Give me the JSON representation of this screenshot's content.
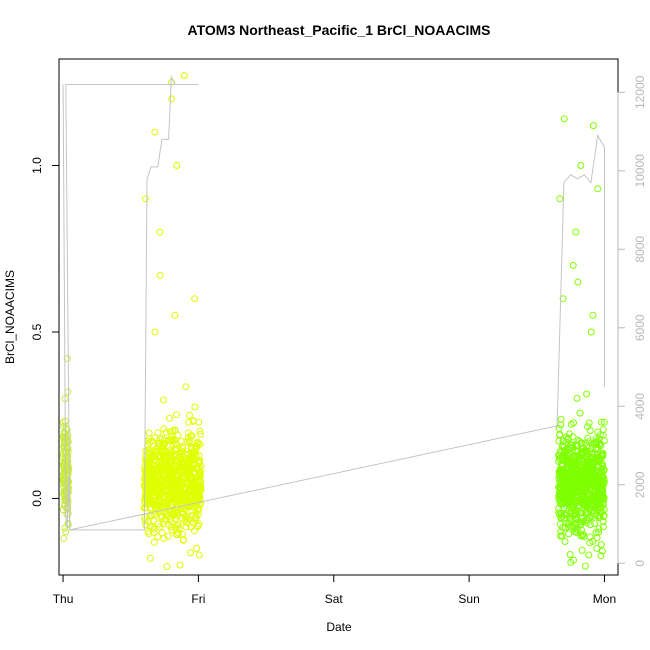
{
  "chart_data": {
    "type": "scatter",
    "title": "ATOM3 Northeast_Pacific_1 BrCl_NOAACIMS",
    "xlabel": "Date",
    "ylabel": "BrCl_NOAACIMS",
    "x_ticks": [
      "Thu",
      "Fri",
      "Sat",
      "Sun",
      "Mon"
    ],
    "xlim_days": [
      -0.03,
      4.1
    ],
    "ylim": [
      -0.23,
      1.32
    ],
    "y_ticks": [
      0.0,
      0.5,
      1.0
    ],
    "y_tick_labels": [
      "0.0",
      "0.5",
      "1.0"
    ],
    "y2lim": [
      -300,
      12850
    ],
    "y2_ticks": [
      0,
      2000,
      4000,
      6000,
      8000,
      10000,
      12000
    ],
    "y2_tick_labels": [
      "0",
      "2000",
      "4000",
      "6000",
      "8000",
      "10000",
      "12000"
    ],
    "grid": false,
    "colors": {
      "early_points": "#c8ec3a",
      "mid_points": "#dfff00",
      "late_points": "#7fff00",
      "altitude_line": "#c4c4c4"
    },
    "series": [
      {
        "kind": "points",
        "segments": [
          {
            "x_start_day": 0.0,
            "x_end_day": 0.04,
            "y_center": 0.08,
            "y_spread": 0.14,
            "outliers": [
              0.42,
              0.32,
              0.3,
              -0.1,
              -0.12
            ],
            "color_key": "early_points",
            "count": 140
          },
          {
            "x_start_day": 0.6,
            "x_end_day": 1.02,
            "y_center": 0.05,
            "y_spread": 0.15,
            "outliers": [
              1.27,
              1.25,
              1.2,
              1.1,
              1.0,
              0.9,
              0.8,
              0.67,
              0.6,
              0.55,
              0.5,
              -0.17,
              -0.18,
              -0.15
            ],
            "color_key": "mid_points",
            "count": 750
          },
          {
            "x_start_day": 3.66,
            "x_end_day": 4.0,
            "y_center": 0.05,
            "y_spread": 0.15,
            "outliers": [
              1.14,
              1.12,
              1.0,
              0.93,
              0.9,
              0.8,
              0.7,
              0.65,
              0.6,
              0.55,
              0.5,
              -0.15,
              -0.17
            ],
            "color_key": "late_points",
            "count": 750
          }
        ]
      },
      {
        "kind": "line",
        "axis": "right",
        "points": [
          [
            0.0,
            12200
          ],
          [
            0.02,
            1200
          ],
          [
            0.03,
            900
          ],
          [
            0.04,
            2200
          ],
          [
            0.05,
            850
          ],
          [
            0.6,
            850
          ],
          [
            0.62,
            9800
          ],
          [
            0.65,
            10100
          ],
          [
            0.7,
            10100
          ],
          [
            0.73,
            10800
          ],
          [
            0.78,
            10800
          ],
          [
            0.8,
            12400
          ],
          [
            0.83,
            12200
          ],
          [
            0.9,
            12200
          ],
          [
            1.0,
            12200
          ],
          [
            0.8,
            12200
          ],
          [
            0.02,
            12200
          ],
          [
            0.05,
            850
          ],
          [
            3.65,
            3500
          ],
          [
            3.7,
            9700
          ],
          [
            3.75,
            9900
          ],
          [
            3.8,
            9800
          ],
          [
            3.85,
            9900
          ],
          [
            3.9,
            9700
          ],
          [
            3.95,
            10900
          ],
          [
            4.0,
            10600
          ],
          [
            4.0,
            4500
          ]
        ]
      }
    ]
  }
}
